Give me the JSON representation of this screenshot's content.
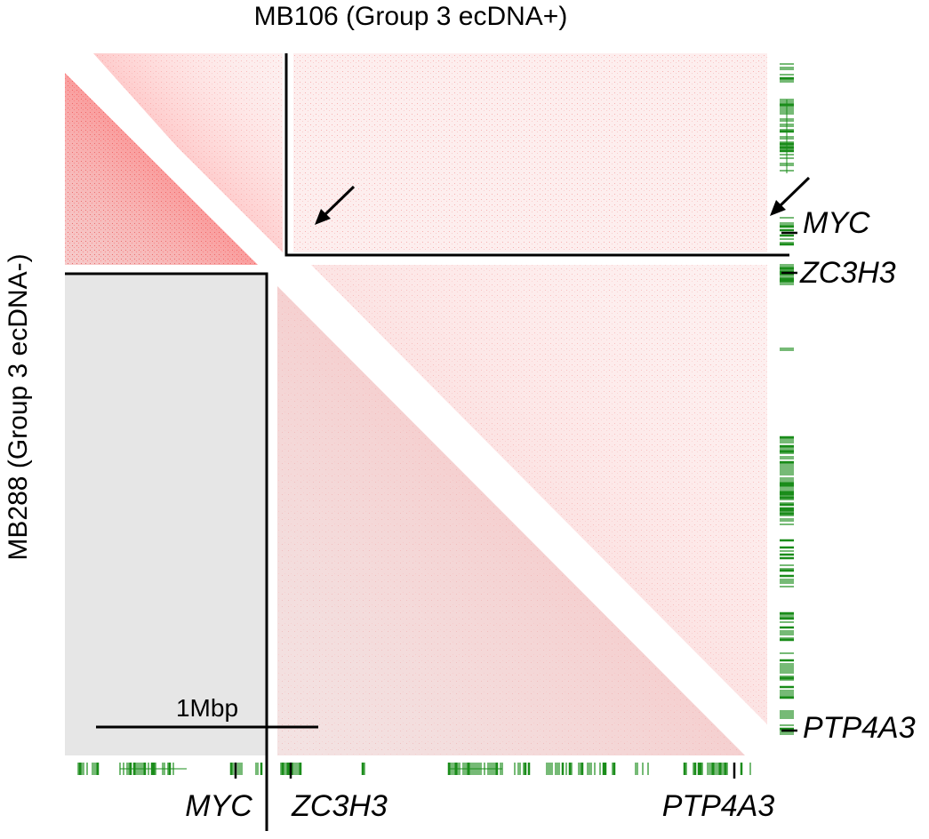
{
  "chart_data": {
    "type": "heatmap",
    "title_top": "MB106 (Group 3 ecDNA+)",
    "title_left": "MB288 (Group 3 ecDNA-)",
    "upper_triangle_sample": "MB106 (Group 3 ecDNA+)",
    "lower_triangle_sample": "MB288 (Group 3 ecDNA-)",
    "colormap": [
      "#ffffff",
      "#ff0000"
    ],
    "missing_color": "#e6e6e6",
    "scale_bar": {
      "label": "1Mbp",
      "length_bp": 1000000
    },
    "bottom_gene_labels": [
      "MYC",
      "ZC3H3",
      "PTP4A3"
    ],
    "right_gene_labels": [
      "MYC",
      "ZC3H3",
      "PTP4A3"
    ],
    "annotations": [
      {
        "type": "arrow",
        "target": "MYC-ZC3H3 contact enrichment",
        "panel": "upper"
      },
      {
        "type": "arrow",
        "target": "MYC-PTP4A3 contact enrichment",
        "panel": "upper"
      }
    ],
    "gene_track_color": "#1a8c1a"
  }
}
